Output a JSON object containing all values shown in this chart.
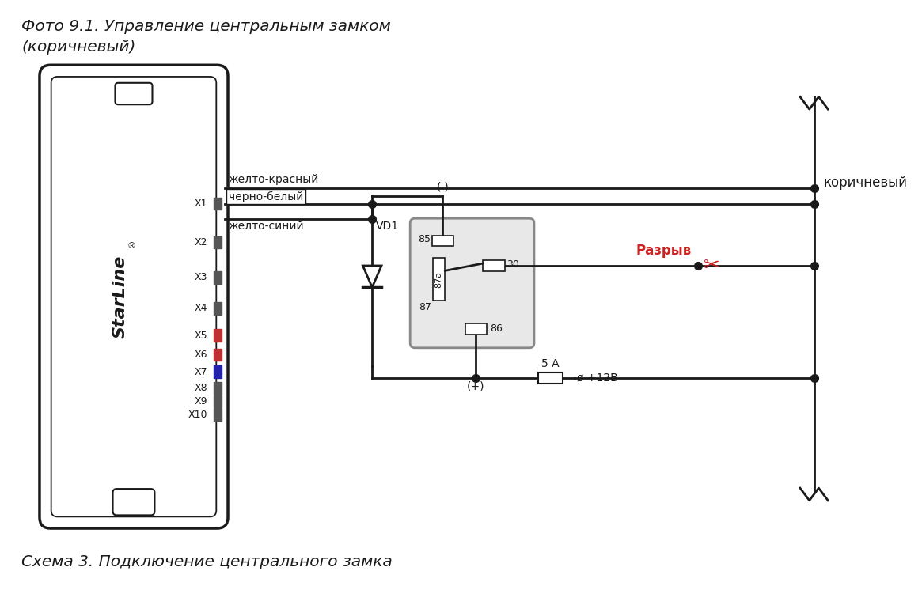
{
  "title1": "Фото 9.1. Управление центральным замком",
  "title2": "(коричневый)",
  "caption": "Схема 3. Подключение центрального замка",
  "bg_color": "#ffffff",
  "wire_labels": [
    "желто-красный",
    "черно-белый",
    "желто-синий"
  ],
  "connector_labels": [
    "X1",
    "X2",
    "X3",
    "X4",
    "X5",
    "X6",
    "X7",
    "X8",
    "X9",
    "X10"
  ],
  "vd1_label": "VD1",
  "plus_label": "(+)",
  "minus_label": "(-)",
  "razryv_label": "Разрыв",
  "korichneviy_label": "коричневый",
  "fuse_label": "5 А",
  "voltage_label": "ø +12В",
  "line_color": "#1a1a1a",
  "red_color": "#cc2222",
  "relay_fill": "#e8e8e8",
  "relay_edge": "#888888",
  "connector_colors": [
    "#555555",
    "#555555",
    "#555555",
    "#555555",
    "#cc3333",
    "#cc3333",
    "#333399",
    "#555555",
    "#555555",
    "#555555"
  ]
}
